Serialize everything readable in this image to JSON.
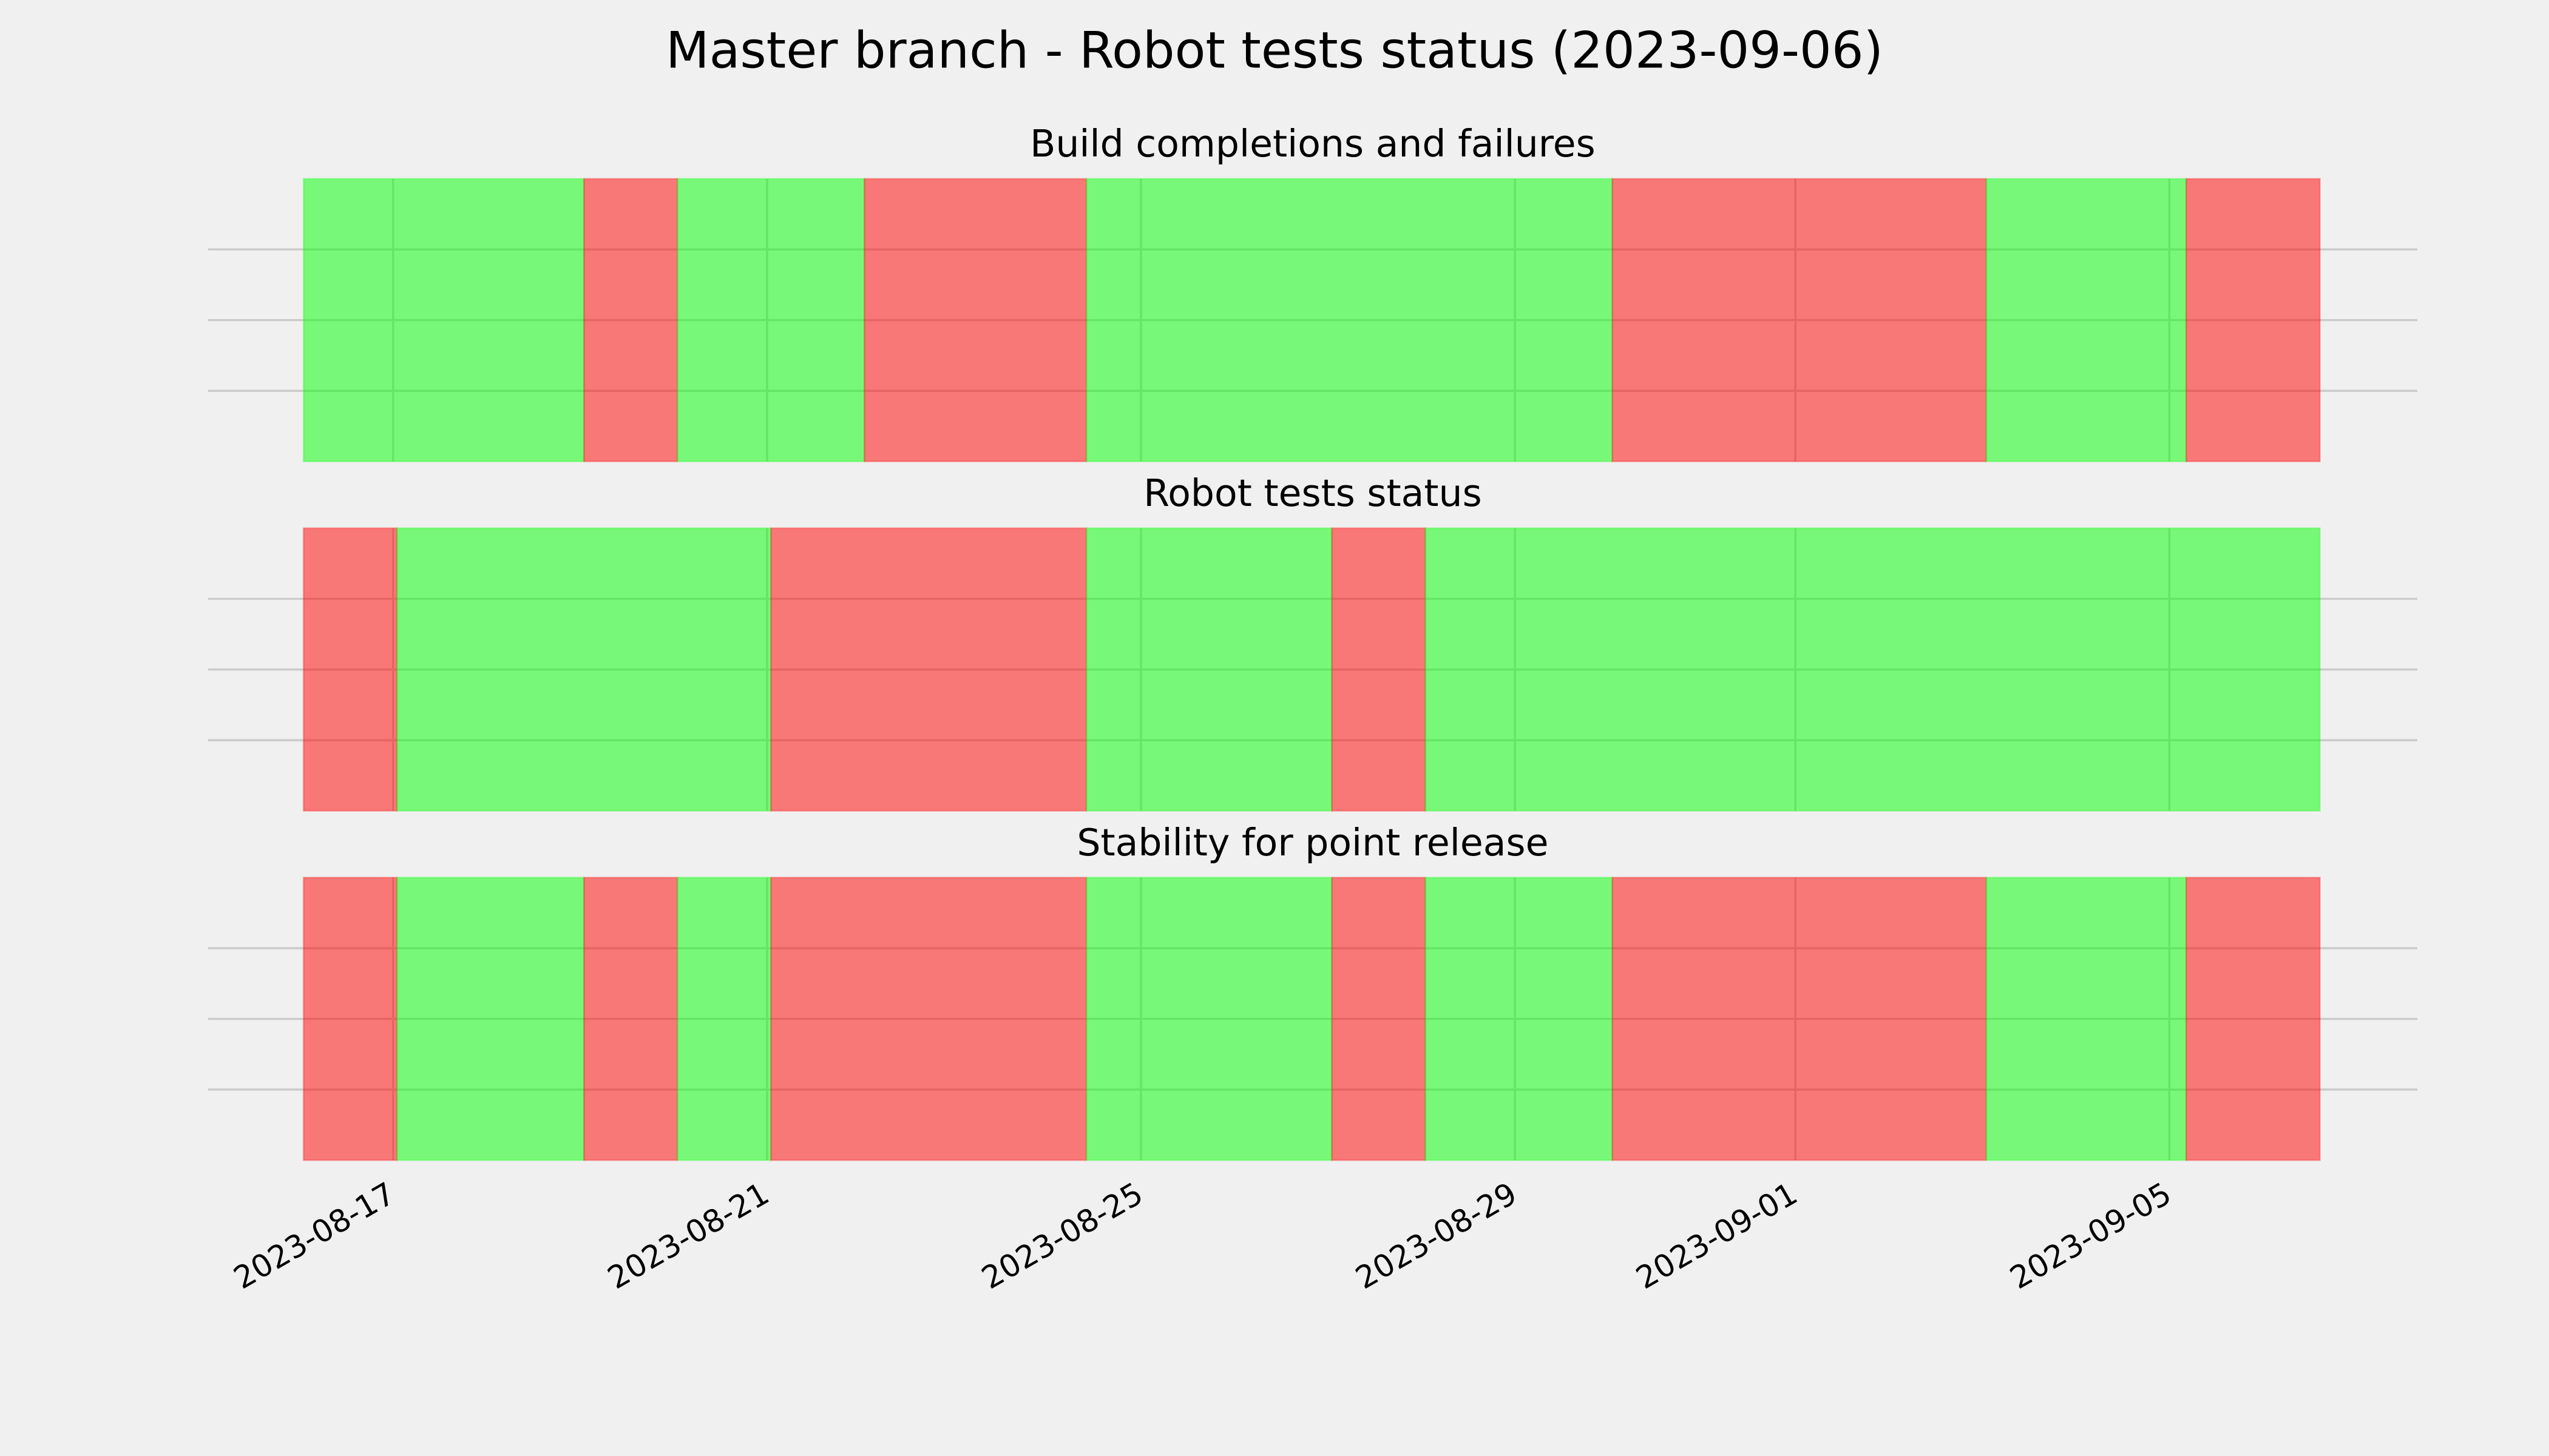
{
  "title": "Master branch - Robot tests status (2023-09-06)",
  "chart_data": [
    {
      "type": "span",
      "title": "Build completions and failures",
      "alpha": 0.5,
      "grid": true,
      "xlim": [
        "2023-08-15 00:30",
        "2023-09-07 15:40"
      ],
      "ylim": [
        0,
        1
      ],
      "yticks": [
        0.25,
        0.5,
        0.75
      ],
      "xticks": [
        "2023-08-17",
        "2023-08-21",
        "2023-08-25",
        "2023-08-29",
        "2023-09-01",
        "2023-09-05"
      ],
      "xtick_labels": false,
      "spans": [
        {
          "start": "2023-08-16 01:00",
          "end": "2023-08-19 01:00",
          "color": "#00ff00"
        },
        {
          "start": "2023-08-19 01:00",
          "end": "2023-08-20 01:00",
          "color": "#ff0000"
        },
        {
          "start": "2023-08-20 01:00",
          "end": "2023-08-22 01:00",
          "color": "#00ff00"
        },
        {
          "start": "2023-08-22 01:00",
          "end": "2023-08-24 10:00",
          "color": "#ff0000"
        },
        {
          "start": "2023-08-24 10:00",
          "end": "2023-08-30 01:00",
          "color": "#00ff00"
        },
        {
          "start": "2023-08-30 01:00",
          "end": "2023-09-03 01:00",
          "color": "#ff0000"
        },
        {
          "start": "2023-09-03 01:00",
          "end": "2023-09-05 04:20",
          "color": "#00ff00"
        },
        {
          "start": "2023-09-05 04:20",
          "end": "2023-09-06 14:40",
          "color": "#ff0000"
        }
      ]
    },
    {
      "type": "span",
      "title": "Robot tests status",
      "alpha": 0.5,
      "grid": true,
      "xlim": [
        "2023-08-15 00:30",
        "2023-09-07 15:40"
      ],
      "ylim": [
        0,
        1
      ],
      "yticks": [
        0.25,
        0.5,
        0.75
      ],
      "xticks": [
        "2023-08-17",
        "2023-08-21",
        "2023-08-25",
        "2023-08-29",
        "2023-09-01",
        "2023-09-05"
      ],
      "xtick_labels": false,
      "spans": [
        {
          "start": "2023-08-16 01:00",
          "end": "2023-08-17 01:00",
          "color": "#ff0000"
        },
        {
          "start": "2023-08-17 01:00",
          "end": "2023-08-21 01:00",
          "color": "#00ff00"
        },
        {
          "start": "2023-08-21 01:00",
          "end": "2023-08-24 10:00",
          "color": "#ff0000"
        },
        {
          "start": "2023-08-24 10:00",
          "end": "2023-08-27 01:00",
          "color": "#00ff00"
        },
        {
          "start": "2023-08-27 01:00",
          "end": "2023-08-28 01:00",
          "color": "#ff0000"
        },
        {
          "start": "2023-08-28 01:00",
          "end": "2023-09-06 14:40",
          "color": "#00ff00"
        }
      ]
    },
    {
      "type": "span",
      "title": "Stability for point release",
      "alpha": 0.5,
      "grid": true,
      "xlim": [
        "2023-08-15 00:30",
        "2023-09-07 15:40"
      ],
      "ylim": [
        0,
        1
      ],
      "yticks": [
        0.25,
        0.5,
        0.75
      ],
      "xticks": [
        "2023-08-17",
        "2023-08-21",
        "2023-08-25",
        "2023-08-29",
        "2023-09-01",
        "2023-09-05"
      ],
      "xtick_labels": true,
      "spans": [
        {
          "start": "2023-08-16 01:00",
          "end": "2023-08-17 01:00",
          "color": "#ff0000"
        },
        {
          "start": "2023-08-17 01:00",
          "end": "2023-08-19 01:00",
          "color": "#00ff00"
        },
        {
          "start": "2023-08-19 01:00",
          "end": "2023-08-20 01:00",
          "color": "#ff0000"
        },
        {
          "start": "2023-08-20 01:00",
          "end": "2023-08-21 01:00",
          "color": "#00ff00"
        },
        {
          "start": "2023-08-21 01:00",
          "end": "2023-08-24 10:00",
          "color": "#ff0000"
        },
        {
          "start": "2023-08-24 10:00",
          "end": "2023-08-27 01:00",
          "color": "#00ff00"
        },
        {
          "start": "2023-08-27 01:00",
          "end": "2023-08-28 01:00",
          "color": "#ff0000"
        },
        {
          "start": "2023-08-28 01:00",
          "end": "2023-08-30 01:00",
          "color": "#00ff00"
        },
        {
          "start": "2023-08-30 01:00",
          "end": "2023-09-03 01:00",
          "color": "#ff0000"
        },
        {
          "start": "2023-09-03 01:00",
          "end": "2023-09-05 04:20",
          "color": "#00ff00"
        },
        {
          "start": "2023-09-05 04:20",
          "end": "2023-09-06 14:40",
          "color": "#ff0000"
        }
      ]
    }
  ]
}
